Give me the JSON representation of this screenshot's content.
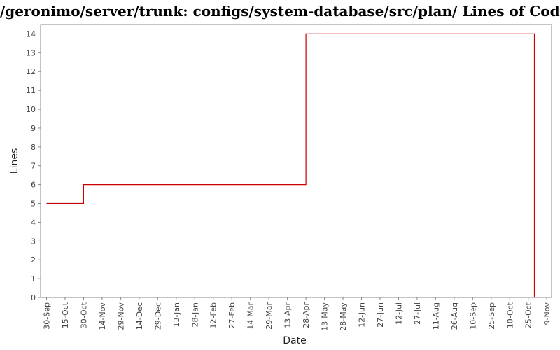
{
  "chart_data": {
    "type": "line",
    "title": "/geronimo/server/trunk: configs/system-database/src/plan/ Lines of Code",
    "xlabel": "Date",
    "ylabel": "Lines",
    "ylim": [
      0,
      14.5
    ],
    "y_ticks": [
      0,
      1,
      2,
      3,
      4,
      5,
      6,
      7,
      8,
      9,
      10,
      11,
      12,
      13,
      14
    ],
    "x_ticks": [
      "30-Sep",
      "15-Oct",
      "30-Oct",
      "14-Nov",
      "29-Nov",
      "14-Dec",
      "29-Dec",
      "13-Jan",
      "28-Jan",
      "12-Feb",
      "27-Feb",
      "14-Mar",
      "29-Mar",
      "13-Apr",
      "28-Apr",
      "13-May",
      "28-May",
      "12-Jun",
      "27-Jun",
      "12-Jul",
      "27-Jul",
      "11-Aug",
      "26-Aug",
      "10-Sep",
      "25-Sep",
      "10-Oct",
      "25-Oct",
      "9-Nov"
    ],
    "grid": false,
    "line_style": "step",
    "series": [
      {
        "color": "#cc0000",
        "points": [
          {
            "x": "30-Sep",
            "y": 5
          },
          {
            "x": "30-Oct",
            "y": 5
          },
          {
            "x": "30-Oct",
            "y": 6
          },
          {
            "x": "28-Apr",
            "y": 6
          },
          {
            "x": "28-Apr",
            "y": 14
          },
          {
            "x": "30-Oct",
            "y": 14,
            "x_next_year": true
          },
          {
            "x": "30-Oct",
            "y": 0,
            "x_next_year": true
          }
        ]
      }
    ]
  }
}
